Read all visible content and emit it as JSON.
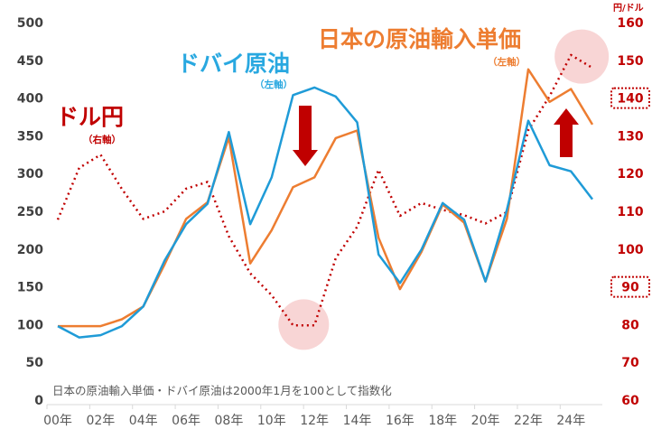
{
  "chart_data": {
    "type": "line",
    "title": "",
    "x": [
      2000,
      2001,
      2002,
      2003,
      2004,
      2005,
      2006,
      2007,
      2008,
      2009,
      2010,
      2011,
      2012,
      2013,
      2014,
      2015,
      2016,
      2017,
      2018,
      2019,
      2020,
      2021,
      2022,
      2023,
      2024,
      2025
    ],
    "xtick_labels": [
      "00年",
      "02年",
      "04年",
      "06年",
      "08年",
      "10年",
      "12年",
      "14年",
      "16年",
      "18年",
      "20年",
      "22年",
      "24年"
    ],
    "left_axis": {
      "ylim": [
        0,
        500
      ],
      "ticks": [
        "0",
        "50",
        "100",
        "150",
        "200",
        "250",
        "300",
        "350",
        "400",
        "450",
        "500"
      ]
    },
    "right_axis": {
      "unit": "円/ドル",
      "ylim": [
        60,
        160
      ],
      "ticks": [
        "60",
        "70",
        "80",
        "90",
        "100",
        "110",
        "120",
        "130",
        "140",
        "150",
        "160"
      ],
      "highlighted_ticks": [
        "90",
        "140"
      ]
    },
    "series": [
      {
        "name": "ドバイ原油",
        "axis_note": "（左軸）",
        "axis": "left",
        "color": "#1f9bd7",
        "style": "solid",
        "values": [
          98,
          83,
          86,
          98,
          124,
          185,
          233,
          260,
          355,
          233,
          295,
          404,
          414,
          402,
          368,
          193,
          155,
          199,
          261,
          239,
          157,
          252,
          370,
          311,
          303,
          266
        ]
      },
      {
        "name": "日本の原油輸入単価",
        "axis_note": "（左軸）",
        "axis": "left",
        "color": "#ed7d31",
        "style": "solid",
        "values": [
          98,
          98,
          98,
          107,
          124,
          180,
          240,
          262,
          348,
          181,
          225,
          282,
          295,
          347,
          357,
          215,
          147,
          196,
          259,
          235,
          157,
          240,
          438,
          395,
          412,
          365
        ]
      },
      {
        "name": "ドル円",
        "axis_note": "（右軸）",
        "axis": "right",
        "color": "#c00000",
        "style": "dotted",
        "values": [
          107.8,
          121.5,
          125,
          115.9,
          108,
          110,
          116,
          117.8,
          103.4,
          93.6,
          87.8,
          79.8,
          79.8,
          97.6,
          105.9,
          121,
          108.8,
          112.2,
          110.4,
          109,
          106.8,
          109.8,
          131.5,
          140.5,
          151.4,
          148
        ]
      }
    ],
    "annotations": {
      "note": "日本の原油輸入単価・ドバイ原油は2000年1月を100として指数化",
      "highlights": [
        {
          "x": 2011.5,
          "y_right": 80
        },
        {
          "x": 2024.5,
          "y_right": 151
        }
      ],
      "arrows": [
        {
          "direction": "down",
          "x": 2011
        },
        {
          "direction": "up",
          "x": 2023.5
        }
      ]
    },
    "grid": false,
    "legend": "inline labels"
  }
}
